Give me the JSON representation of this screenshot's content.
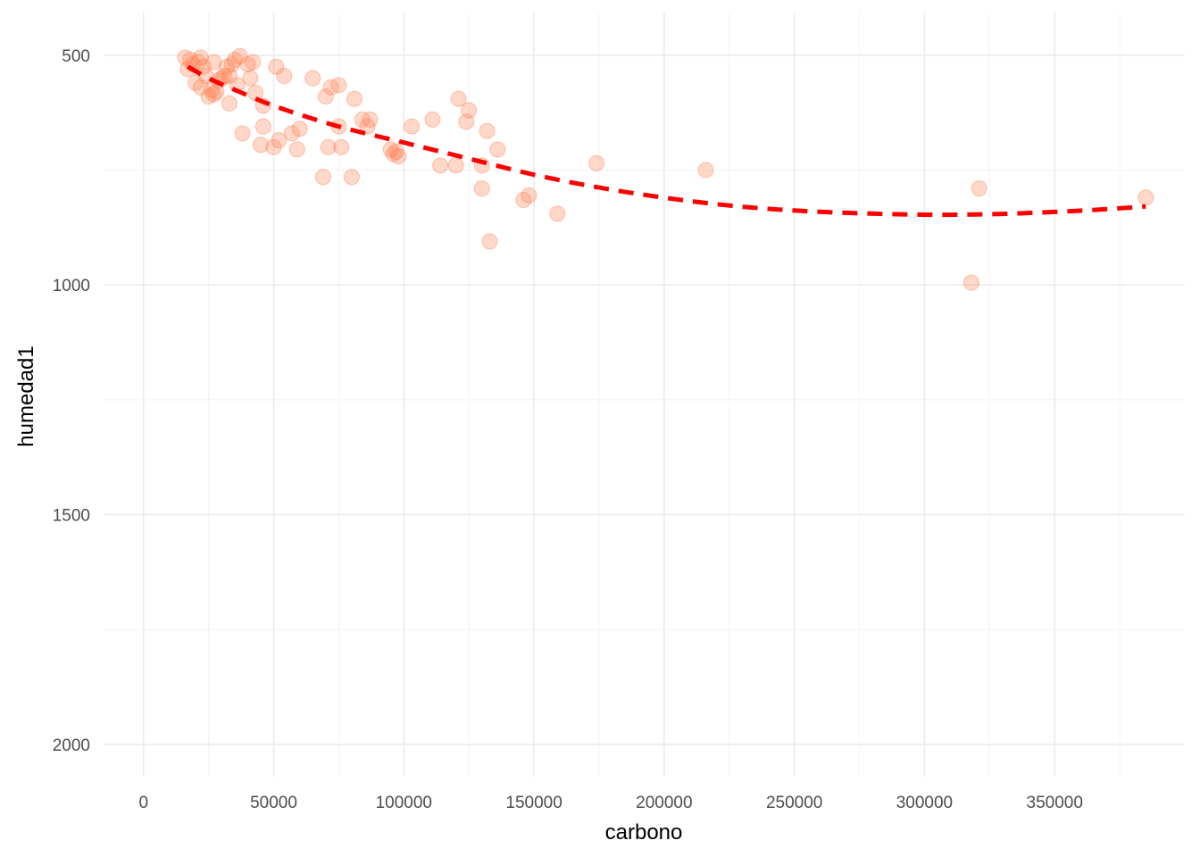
{
  "chart_data": {
    "type": "scatter",
    "title": "",
    "xlabel": "carbono",
    "ylabel": "humedad1",
    "xlim": [
      -15000,
      400000
    ],
    "ylim": [
      2070,
      407
    ],
    "y_reversed": true,
    "x_ticks": [
      0,
      50000,
      100000,
      150000,
      200000,
      250000,
      300000,
      350000
    ],
    "x_tick_labels": [
      "0",
      "50000",
      "100000",
      "150000",
      "200000",
      "250000",
      "300000",
      "350000"
    ],
    "y_ticks": [
      500,
      1000,
      1500,
      2000
    ],
    "y_tick_labels": [
      "500",
      "1000",
      "1500",
      "2000"
    ],
    "grid": true,
    "legend": "none",
    "colors": {
      "points": "#ff7f50",
      "smooth": "#ff0000",
      "grid": "#ebebeb",
      "background": "#ffffff"
    },
    "points": [
      {
        "x": 16000,
        "y": 505
      },
      {
        "x": 18000,
        "y": 510
      },
      {
        "x": 17000,
        "y": 530
      },
      {
        "x": 19000,
        "y": 520
      },
      {
        "x": 21000,
        "y": 515
      },
      {
        "x": 22000,
        "y": 505
      },
      {
        "x": 23000,
        "y": 525
      },
      {
        "x": 20000,
        "y": 560
      },
      {
        "x": 22000,
        "y": 570
      },
      {
        "x": 24000,
        "y": 545
      },
      {
        "x": 25000,
        "y": 590
      },
      {
        "x": 26000,
        "y": 575
      },
      {
        "x": 27000,
        "y": 585
      },
      {
        "x": 28000,
        "y": 580
      },
      {
        "x": 27000,
        "y": 515
      },
      {
        "x": 29000,
        "y": 555
      },
      {
        "x": 30000,
        "y": 550
      },
      {
        "x": 31000,
        "y": 545
      },
      {
        "x": 32000,
        "y": 525
      },
      {
        "x": 33000,
        "y": 545
      },
      {
        "x": 34000,
        "y": 520
      },
      {
        "x": 35000,
        "y": 510
      },
      {
        "x": 37000,
        "y": 502
      },
      {
        "x": 36000,
        "y": 565
      },
      {
        "x": 33000,
        "y": 605
      },
      {
        "x": 38000,
        "y": 670
      },
      {
        "x": 40000,
        "y": 520
      },
      {
        "x": 41000,
        "y": 550
      },
      {
        "x": 42000,
        "y": 515
      },
      {
        "x": 43000,
        "y": 582
      },
      {
        "x": 46000,
        "y": 610
      },
      {
        "x": 46000,
        "y": 655
      },
      {
        "x": 45000,
        "y": 695
      },
      {
        "x": 50000,
        "y": 700
      },
      {
        "x": 52000,
        "y": 685
      },
      {
        "x": 51000,
        "y": 525
      },
      {
        "x": 54000,
        "y": 545
      },
      {
        "x": 57000,
        "y": 670
      },
      {
        "x": 59000,
        "y": 705
      },
      {
        "x": 60000,
        "y": 660
      },
      {
        "x": 65000,
        "y": 550
      },
      {
        "x": 69000,
        "y": 765
      },
      {
        "x": 70000,
        "y": 590
      },
      {
        "x": 71000,
        "y": 700
      },
      {
        "x": 72000,
        "y": 570
      },
      {
        "x": 75000,
        "y": 565
      },
      {
        "x": 75000,
        "y": 655
      },
      {
        "x": 76000,
        "y": 700
      },
      {
        "x": 80000,
        "y": 765
      },
      {
        "x": 81000,
        "y": 595
      },
      {
        "x": 84000,
        "y": 640
      },
      {
        "x": 86000,
        "y": 655
      },
      {
        "x": 87000,
        "y": 640
      },
      {
        "x": 95000,
        "y": 705
      },
      {
        "x": 96000,
        "y": 715
      },
      {
        "x": 97000,
        "y": 710
      },
      {
        "x": 98000,
        "y": 720
      },
      {
        "x": 103000,
        "y": 655
      },
      {
        "x": 111000,
        "y": 640
      },
      {
        "x": 114000,
        "y": 740
      },
      {
        "x": 120000,
        "y": 740
      },
      {
        "x": 121000,
        "y": 595
      },
      {
        "x": 124000,
        "y": 645
      },
      {
        "x": 125000,
        "y": 620
      },
      {
        "x": 130000,
        "y": 740
      },
      {
        "x": 130000,
        "y": 790
      },
      {
        "x": 132000,
        "y": 665
      },
      {
        "x": 133000,
        "y": 905
      },
      {
        "x": 136000,
        "y": 705
      },
      {
        "x": 146000,
        "y": 815
      },
      {
        "x": 148000,
        "y": 805
      },
      {
        "x": 159000,
        "y": 845
      },
      {
        "x": 174000,
        "y": 735
      },
      {
        "x": 216000,
        "y": 750
      },
      {
        "x": 318000,
        "y": 995
      },
      {
        "x": 321000,
        "y": 790
      },
      {
        "x": 385000,
        "y": 810
      }
    ],
    "smooth_line": {
      "x": [
        17000,
        25000,
        35000,
        50000,
        75000,
        100000,
        125000,
        150000,
        175000,
        200000,
        225000,
        250000,
        275000,
        300000,
        325000,
        350000,
        370000,
        385000
      ],
      "y": [
        525,
        550,
        575,
        610,
        655,
        690,
        725,
        760,
        788,
        810,
        827,
        838,
        844,
        847,
        846,
        841,
        835,
        829
      ]
    }
  }
}
